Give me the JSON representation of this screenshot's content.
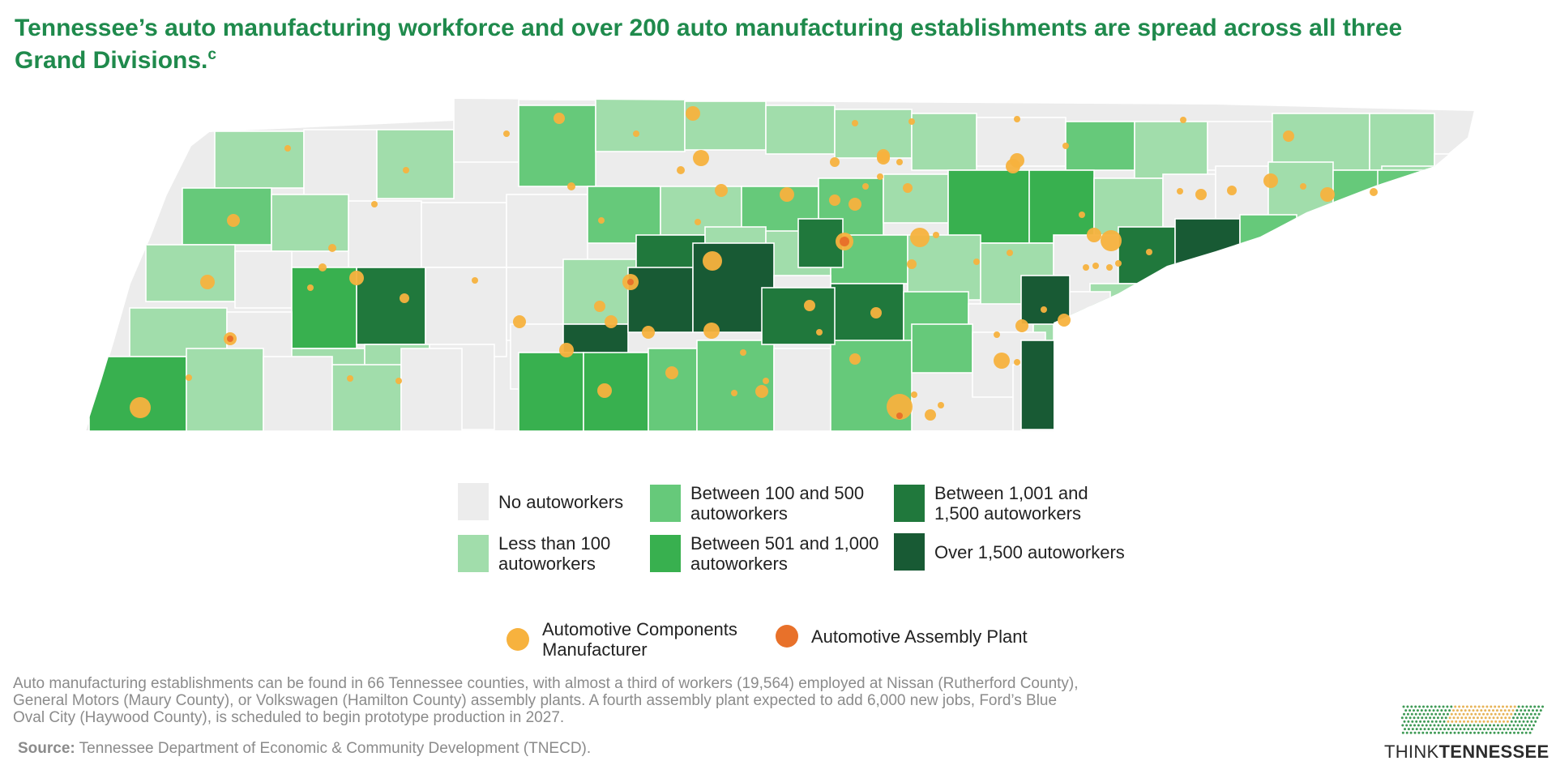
{
  "title": "Tennessee’s auto manufacturing workforce and over 200 auto manufacturing establishments are spread across all three Grand Divisions.",
  "title_sup": "c",
  "legend": {
    "categories": [
      {
        "label": "No autoworkers",
        "color": "#ececec"
      },
      {
        "label": "Less than 100 autoworkers",
        "color": "#a1ddab"
      },
      {
        "label": "Between 100 and 500 autoworkers",
        "color": "#66c97a"
      },
      {
        "label": "Between 501 and 1,000 autoworkers",
        "color": "#38b04f"
      },
      {
        "label": "Between 1,001 and 1,500 autoworkers",
        "color": "#20783c"
      },
      {
        "label": "Over 1,500 autoworkers",
        "color": "#185a34"
      }
    ],
    "symbols": [
      {
        "label": "Automotive Components Manufacturer",
        "color": "#f7b23e"
      },
      {
        "label": "Automotive Assembly Plant",
        "color": "#e8712a"
      }
    ]
  },
  "note": "Auto manufacturing establishments can be found in 66 Tennessee counties, with almost a third of workers (19,564) employed at Nissan (Rutherford County),\nGeneral Motors (Maury County), or Volkswagen (Hamilton County) assembly plants. A fourth assembly plant expected to add 6,000 new jobs, Ford’s Blue\n Oval City (Haywood County), is scheduled to begin prototype production in 2027.",
  "source_label": "Source:",
  "source_text": " Tennessee Department of Economic & Community Development (TNECD).",
  "brand": {
    "think": "THINK",
    "tennessee": "TENNESSEE"
  }
}
